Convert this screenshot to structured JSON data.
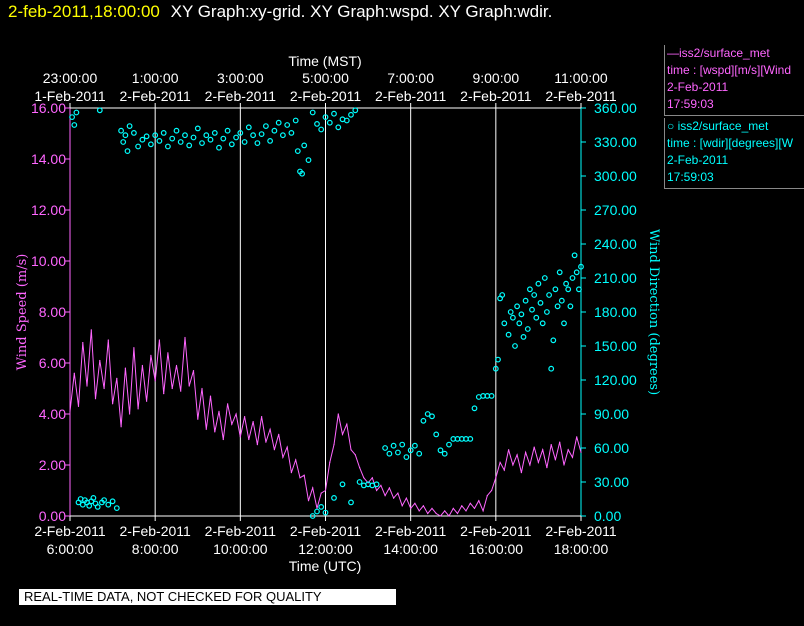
{
  "header": {
    "timestamp": "2-feb-2011,18:00:00",
    "graphs": "XY Graph:xy-grid.  XY Graph:wspd.  XY Graph:wdir."
  },
  "legend": [
    {
      "line1": "—iss2/surface_met",
      "line2": "time : [wspd][m/s][Wind",
      "line3": "2-Feb-2011",
      "line4": "17:59:03",
      "color": "#ff66ff"
    },
    {
      "line1": "○ iss2/surface_met",
      "line2": "time : [wdir][degrees][W",
      "line3": "2-Feb-2011",
      "line4": "17:59:03",
      "color": "#00ffff"
    }
  ],
  "banner": "REAL-TIME DATA, NOT CHECKED FOR QUALITY",
  "colors": {
    "speed": "#ff66ff",
    "direction": "#00ffff",
    "grid": "#ffffff",
    "background": "#000000",
    "timestamp": "#ffff00"
  },
  "chart_data": {
    "type": "line",
    "x_top_label": "Time (MST)",
    "x_bottom_label": "Time (UTC)",
    "y_left_label": "Wind Speed (m/s)",
    "y_right_label": "Wind Direction (degrees)",
    "x_range_utc_hours": [
      6.0,
      18.0
    ],
    "ylim_left": [
      0,
      16
    ],
    "ylim_right": [
      0,
      360
    ],
    "y_left_ticks": [
      "0.00",
      "2.00",
      "4.00",
      "6.00",
      "8.00",
      "10.00",
      "12.00",
      "14.00",
      "16.00"
    ],
    "y_right_ticks": [
      "0.00",
      "30.00",
      "60.00",
      "90.00",
      "120.00",
      "150.00",
      "180.00",
      "210.00",
      "240.00",
      "270.00",
      "300.00",
      "330.00",
      "360.00"
    ],
    "top_ticks": [
      {
        "hour_utc": 6,
        "time": "23:00:00",
        "date": "1-Feb-2011"
      },
      {
        "hour_utc": 8,
        "time": "1:00:00",
        "date": "2-Feb-2011"
      },
      {
        "hour_utc": 10,
        "time": "3:00:00",
        "date": "2-Feb-2011"
      },
      {
        "hour_utc": 12,
        "time": "5:00:00",
        "date": "2-Feb-2011"
      },
      {
        "hour_utc": 14,
        "time": "7:00:00",
        "date": "2-Feb-2011"
      },
      {
        "hour_utc": 16,
        "time": "9:00:00",
        "date": "2-Feb-2011"
      },
      {
        "hour_utc": 18,
        "time": "11:00:00",
        "date": "2-Feb-2011"
      }
    ],
    "bottom_ticks": [
      {
        "hour_utc": 6,
        "date": "2-Feb-2011",
        "time": "6:00:00"
      },
      {
        "hour_utc": 8,
        "date": "2-Feb-2011",
        "time": "8:00:00"
      },
      {
        "hour_utc": 10,
        "date": "2-Feb-2011",
        "time": "10:00:00"
      },
      {
        "hour_utc": 12,
        "date": "2-Feb-2011",
        "time": "12:00:00"
      },
      {
        "hour_utc": 14,
        "date": "2-Feb-2011",
        "time": "14:00:00"
      },
      {
        "hour_utc": 16,
        "date": "2-Feb-2011",
        "time": "16:00:00"
      },
      {
        "hour_utc": 18,
        "date": "2-Feb-2011",
        "time": "18:00:00"
      }
    ],
    "series": [
      {
        "name": "wspd",
        "axis": "left",
        "style": "line",
        "points": [
          [
            6.0,
            4.1
          ],
          [
            6.1,
            5.6
          ],
          [
            6.2,
            4.3
          ],
          [
            6.3,
            6.8
          ],
          [
            6.4,
            5.1
          ],
          [
            6.5,
            7.3
          ],
          [
            6.6,
            4.6
          ],
          [
            6.7,
            6.1
          ],
          [
            6.8,
            5.0
          ],
          [
            6.9,
            6.9
          ],
          [
            7.0,
            4.4
          ],
          [
            7.1,
            5.4
          ],
          [
            7.2,
            3.5
          ],
          [
            7.3,
            5.8
          ],
          [
            7.4,
            4.0
          ],
          [
            7.5,
            6.6
          ],
          [
            7.6,
            4.2
          ],
          [
            7.7,
            5.9
          ],
          [
            7.8,
            4.5
          ],
          [
            7.9,
            6.3
          ],
          [
            8.0,
            5.3
          ],
          [
            8.1,
            6.9
          ],
          [
            8.2,
            4.8
          ],
          [
            8.3,
            6.4
          ],
          [
            8.4,
            5.0
          ],
          [
            8.5,
            5.9
          ],
          [
            8.6,
            4.9
          ],
          [
            8.7,
            7.0
          ],
          [
            8.8,
            5.1
          ],
          [
            8.9,
            5.7
          ],
          [
            9.0,
            3.8
          ],
          [
            9.1,
            5.0
          ],
          [
            9.2,
            3.4
          ],
          [
            9.3,
            4.7
          ],
          [
            9.4,
            3.3
          ],
          [
            9.5,
            4.1
          ],
          [
            9.6,
            3.0
          ],
          [
            9.7,
            4.4
          ],
          [
            9.8,
            3.6
          ],
          [
            9.9,
            4.0
          ],
          [
            10.0,
            3.1
          ],
          [
            10.1,
            3.9
          ],
          [
            10.2,
            3.0
          ],
          [
            10.3,
            3.7
          ],
          [
            10.4,
            2.8
          ],
          [
            10.5,
            3.9
          ],
          [
            10.6,
            2.9
          ],
          [
            10.7,
            3.4
          ],
          [
            10.8,
            2.6
          ],
          [
            10.9,
            3.2
          ],
          [
            11.0,
            2.3
          ],
          [
            11.1,
            2.7
          ],
          [
            11.2,
            1.7
          ],
          [
            11.3,
            2.2
          ],
          [
            11.4,
            1.5
          ],
          [
            11.5,
            1.6
          ],
          [
            11.6,
            0.6
          ],
          [
            11.7,
            1.1
          ],
          [
            11.8,
            0.3
          ],
          [
            11.9,
            0.9
          ],
          [
            12.0,
            1.0
          ],
          [
            12.1,
            2.1
          ],
          [
            12.2,
            2.8
          ],
          [
            12.3,
            4.0
          ],
          [
            12.4,
            3.2
          ],
          [
            12.5,
            3.6
          ],
          [
            12.6,
            2.6
          ],
          [
            12.7,
            2.4
          ],
          [
            12.8,
            1.9
          ],
          [
            12.9,
            1.5
          ],
          [
            13.0,
            1.3
          ],
          [
            13.1,
            1.5
          ],
          [
            13.2,
            1.0
          ],
          [
            13.3,
            1.2
          ],
          [
            13.4,
            0.8
          ],
          [
            13.5,
            1.1
          ],
          [
            13.6,
            0.7
          ],
          [
            13.7,
            0.9
          ],
          [
            13.8,
            0.4
          ],
          [
            13.9,
            0.7
          ],
          [
            14.0,
            0.3
          ],
          [
            14.1,
            0.5
          ],
          [
            14.2,
            0.2
          ],
          [
            14.3,
            0.4
          ],
          [
            14.4,
            0.1
          ],
          [
            14.5,
            0.3
          ],
          [
            14.6,
            0.1
          ],
          [
            14.7,
            0.0
          ],
          [
            14.8,
            0.2
          ],
          [
            14.9,
            0.0
          ],
          [
            15.0,
            0.3
          ],
          [
            15.1,
            0.1
          ],
          [
            15.2,
            0.4
          ],
          [
            15.3,
            0.2
          ],
          [
            15.4,
            0.5
          ],
          [
            15.5,
            0.3
          ],
          [
            15.6,
            0.6
          ],
          [
            15.7,
            0.2
          ],
          [
            15.8,
            0.8
          ],
          [
            15.9,
            1.0
          ],
          [
            16.0,
            1.5
          ],
          [
            16.1,
            2.1
          ],
          [
            16.2,
            1.8
          ],
          [
            16.3,
            2.6
          ],
          [
            16.4,
            2.0
          ],
          [
            16.5,
            2.4
          ],
          [
            16.6,
            1.7
          ],
          [
            16.7,
            2.5
          ],
          [
            16.8,
            2.0
          ],
          [
            16.9,
            2.7
          ],
          [
            17.0,
            2.1
          ],
          [
            17.1,
            2.6
          ],
          [
            17.2,
            1.9
          ],
          [
            17.3,
            2.8
          ],
          [
            17.4,
            2.2
          ],
          [
            17.5,
            2.9
          ],
          [
            17.6,
            2.0
          ],
          [
            17.7,
            2.6
          ],
          [
            17.8,
            2.3
          ],
          [
            17.9,
            3.1
          ],
          [
            18.0,
            2.5
          ]
        ]
      },
      {
        "name": "wdir",
        "axis": "right",
        "style": "scatter",
        "points": [
          [
            6.05,
            352
          ],
          [
            6.1,
            345
          ],
          [
            6.15,
            356
          ],
          [
            6.2,
            12
          ],
          [
            6.25,
            15
          ],
          [
            6.3,
            10
          ],
          [
            6.35,
            14
          ],
          [
            6.4,
            12
          ],
          [
            6.45,
            9
          ],
          [
            6.5,
            13
          ],
          [
            6.55,
            16
          ],
          [
            6.6,
            11
          ],
          [
            6.65,
            8
          ],
          [
            6.7,
            358
          ],
          [
            6.75,
            12
          ],
          [
            6.8,
            14
          ],
          [
            6.9,
            10
          ],
          [
            7.0,
            13
          ],
          [
            7.1,
            7
          ],
          [
            7.2,
            340
          ],
          [
            7.25,
            330
          ],
          [
            7.3,
            336
          ],
          [
            7.35,
            322
          ],
          [
            7.4,
            344
          ],
          [
            7.5,
            338
          ],
          [
            7.6,
            326
          ],
          [
            7.7,
            332
          ],
          [
            7.8,
            335
          ],
          [
            7.9,
            328
          ],
          [
            8.0,
            336
          ],
          [
            8.1,
            331
          ],
          [
            8.2,
            338
          ],
          [
            8.3,
            326
          ],
          [
            8.4,
            333
          ],
          [
            8.5,
            340
          ],
          [
            8.6,
            330
          ],
          [
            8.7,
            336
          ],
          [
            8.8,
            327
          ],
          [
            8.9,
            334
          ],
          [
            9.0,
            342
          ],
          [
            9.1,
            329
          ],
          [
            9.2,
            336
          ],
          [
            9.3,
            332
          ],
          [
            9.4,
            338
          ],
          [
            9.5,
            325
          ],
          [
            9.6,
            333
          ],
          [
            9.7,
            340
          ],
          [
            9.8,
            328
          ],
          [
            9.9,
            334
          ],
          [
            10.0,
            338
          ],
          [
            10.1,
            330
          ],
          [
            10.2,
            343
          ],
          [
            10.3,
            336
          ],
          [
            10.4,
            329
          ],
          [
            10.5,
            337
          ],
          [
            10.6,
            344
          ],
          [
            10.7,
            331
          ],
          [
            10.8,
            340
          ],
          [
            10.9,
            347
          ],
          [
            11.0,
            336
          ],
          [
            11.1,
            345
          ],
          [
            11.2,
            338
          ],
          [
            11.3,
            349
          ],
          [
            11.35,
            322
          ],
          [
            11.4,
            304
          ],
          [
            11.45,
            302
          ],
          [
            11.5,
            327
          ],
          [
            11.6,
            314
          ],
          [
            11.7,
            356
          ],
          [
            11.8,
            346
          ],
          [
            11.9,
            341
          ],
          [
            12.0,
            352
          ],
          [
            12.1,
            347
          ],
          [
            12.2,
            355
          ],
          [
            12.3,
            343
          ],
          [
            12.4,
            350
          ],
          [
            12.5,
            349
          ],
          [
            12.6,
            354
          ],
          [
            12.7,
            358
          ],
          [
            11.7,
            0
          ],
          [
            11.8,
            4
          ],
          [
            11.9,
            8
          ],
          [
            12.0,
            3
          ],
          [
            12.2,
            16
          ],
          [
            12.4,
            28
          ],
          [
            12.6,
            12
          ],
          [
            12.8,
            30
          ],
          [
            12.9,
            27
          ],
          [
            13.0,
            28
          ],
          [
            13.1,
            27
          ],
          [
            13.2,
            28
          ],
          [
            13.4,
            60
          ],
          [
            13.5,
            55
          ],
          [
            13.6,
            62
          ],
          [
            13.7,
            56
          ],
          [
            13.8,
            63
          ],
          [
            13.9,
            52
          ],
          [
            14.0,
            58
          ],
          [
            14.1,
            62
          ],
          [
            14.2,
            55
          ],
          [
            14.3,
            84
          ],
          [
            14.4,
            90
          ],
          [
            14.5,
            88
          ],
          [
            14.6,
            72
          ],
          [
            14.7,
            58
          ],
          [
            14.8,
            55
          ],
          [
            14.9,
            63
          ],
          [
            15.0,
            68
          ],
          [
            15.1,
            68
          ],
          [
            15.2,
            68
          ],
          [
            15.3,
            68
          ],
          [
            15.4,
            68
          ],
          [
            15.5,
            95
          ],
          [
            15.6,
            105
          ],
          [
            15.7,
            106
          ],
          [
            15.8,
            106
          ],
          [
            15.9,
            106
          ],
          [
            16.0,
            130
          ],
          [
            16.05,
            138
          ],
          [
            16.1,
            192
          ],
          [
            16.15,
            195
          ],
          [
            16.2,
            170
          ],
          [
            16.3,
            160
          ],
          [
            16.35,
            180
          ],
          [
            16.4,
            175
          ],
          [
            16.45,
            150
          ],
          [
            16.5,
            185
          ],
          [
            16.55,
            170
          ],
          [
            16.6,
            178
          ],
          [
            16.65,
            158
          ],
          [
            16.7,
            190
          ],
          [
            16.75,
            165
          ],
          [
            16.8,
            200
          ],
          [
            16.85,
            182
          ],
          [
            16.9,
            195
          ],
          [
            16.95,
            175
          ],
          [
            17.0,
            205
          ],
          [
            17.05,
            188
          ],
          [
            17.1,
            170
          ],
          [
            17.15,
            210
          ],
          [
            17.2,
            180
          ],
          [
            17.25,
            195
          ],
          [
            17.3,
            130
          ],
          [
            17.35,
            155
          ],
          [
            17.4,
            200
          ],
          [
            17.45,
            185
          ],
          [
            17.5,
            215
          ],
          [
            17.55,
            190
          ],
          [
            17.6,
            170
          ],
          [
            17.65,
            205
          ],
          [
            17.7,
            200
          ],
          [
            17.75,
            185
          ],
          [
            17.8,
            210
          ],
          [
            17.85,
            230
          ],
          [
            17.9,
            215
          ],
          [
            17.95,
            200
          ],
          [
            18.0,
            220
          ]
        ]
      }
    ],
    "grid": true
  }
}
